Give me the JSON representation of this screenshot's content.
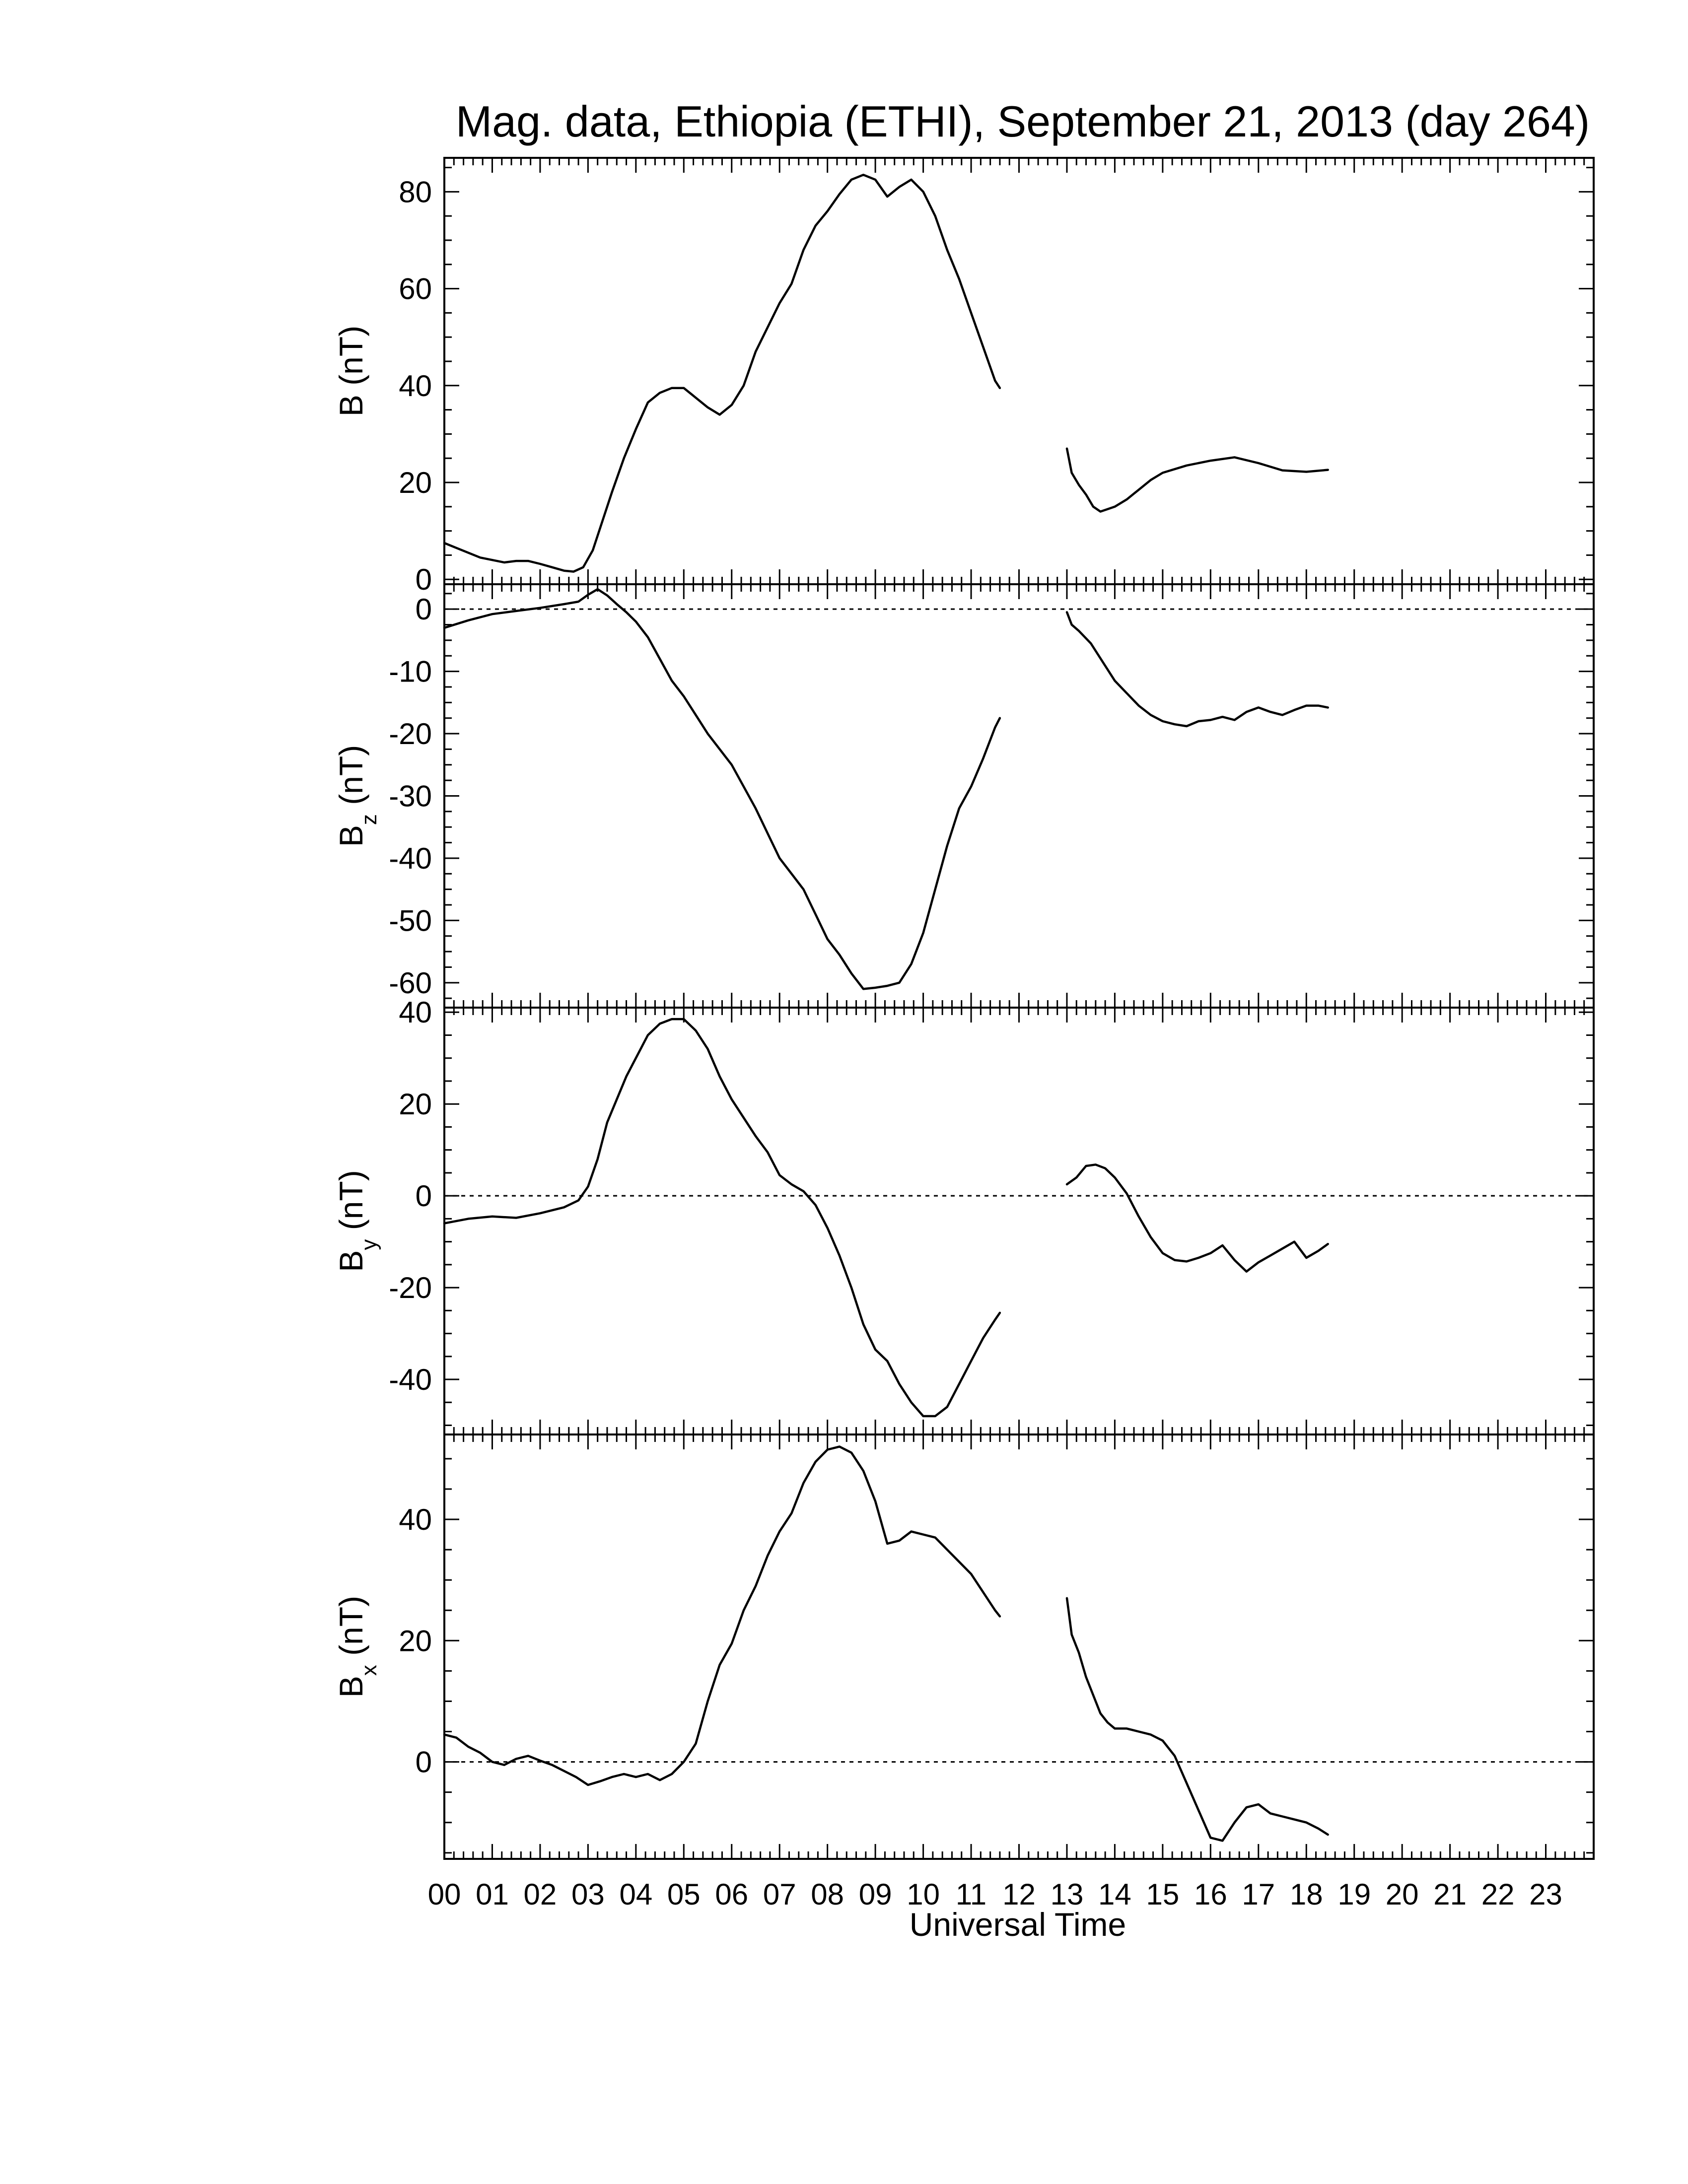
{
  "figure": {
    "title": "Mag. data, Ethiopia (ETHI), September 21, 2013 (day 264)",
    "xlabel": "Universal Time"
  },
  "chart_data": [
    {
      "type": "line",
      "panel": "B",
      "ylabel_base": "B",
      "ylabel_sub": "",
      "ylabel_unit": "(nT)",
      "ylim": [
        -1,
        87
      ],
      "yticks": [
        0,
        20,
        40,
        60,
        80
      ],
      "xlim": [
        0,
        24
      ],
      "zero_line": false,
      "segments": [
        [
          [
            0,
            7.5
          ],
          [
            0.25,
            6.5
          ],
          [
            0.5,
            5.5
          ],
          [
            0.75,
            4.5
          ],
          [
            1.0,
            4
          ],
          [
            1.25,
            3.5
          ],
          [
            1.5,
            3.8
          ],
          [
            1.75,
            3.8
          ],
          [
            2.0,
            3.2
          ],
          [
            2.25,
            2.5
          ],
          [
            2.5,
            1.8
          ],
          [
            2.7,
            1.6
          ],
          [
            2.9,
            2.5
          ],
          [
            3.1,
            6
          ],
          [
            3.3,
            12
          ],
          [
            3.5,
            18
          ],
          [
            3.75,
            25
          ],
          [
            4.0,
            31
          ],
          [
            4.25,
            36.5
          ],
          [
            4.5,
            38.5
          ],
          [
            4.75,
            39.5
          ],
          [
            5.0,
            39.5
          ],
          [
            5.25,
            37.5
          ],
          [
            5.5,
            35.5
          ],
          [
            5.75,
            34
          ],
          [
            6.0,
            36
          ],
          [
            6.25,
            40
          ],
          [
            6.5,
            47
          ],
          [
            6.75,
            52
          ],
          [
            7.0,
            57
          ],
          [
            7.25,
            61
          ],
          [
            7.5,
            68
          ],
          [
            7.75,
            73
          ],
          [
            8.0,
            76
          ],
          [
            8.25,
            79.5
          ],
          [
            8.5,
            82.5
          ],
          [
            8.75,
            83.5
          ],
          [
            9.0,
            82.5
          ],
          [
            9.25,
            79
          ],
          [
            9.5,
            81
          ],
          [
            9.75,
            82.5
          ],
          [
            10.0,
            80
          ],
          [
            10.25,
            75
          ],
          [
            10.5,
            68
          ],
          [
            10.75,
            62
          ],
          [
            11.0,
            55
          ],
          [
            11.25,
            48
          ],
          [
            11.5,
            41
          ],
          [
            11.6,
            39.5
          ]
        ],
        [
          [
            13.0,
            27
          ],
          [
            13.1,
            22
          ],
          [
            13.25,
            19.5
          ],
          [
            13.4,
            17.5
          ],
          [
            13.55,
            15
          ],
          [
            13.7,
            14
          ],
          [
            13.85,
            14.5
          ],
          [
            14.0,
            15
          ],
          [
            14.25,
            16.5
          ],
          [
            14.5,
            18.5
          ],
          [
            14.75,
            20.5
          ],
          [
            15.0,
            22
          ],
          [
            15.5,
            23.5
          ],
          [
            16.0,
            24.5
          ],
          [
            16.5,
            25.2
          ],
          [
            17.0,
            24
          ],
          [
            17.5,
            22.5
          ],
          [
            18.0,
            22.2
          ],
          [
            18.45,
            22.6
          ]
        ]
      ]
    },
    {
      "type": "line",
      "panel": "Bz",
      "ylabel_base": "B",
      "ylabel_sub": "z",
      "ylabel_unit": "(nT)",
      "ylim": [
        -64,
        4
      ],
      "yticks": [
        0,
        -10,
        -20,
        -30,
        -40,
        -50,
        -60
      ],
      "xlim": [
        0,
        24
      ],
      "zero_line": true,
      "segments": [
        [
          [
            0,
            -3
          ],
          [
            0.5,
            -1.8
          ],
          [
            1.0,
            -0.8
          ],
          [
            1.5,
            -0.3
          ],
          [
            2.0,
            0.2
          ],
          [
            2.5,
            0.8
          ],
          [
            2.8,
            1.2
          ],
          [
            3.0,
            2.3
          ],
          [
            3.2,
            3.2
          ],
          [
            3.4,
            2.2
          ],
          [
            3.6,
            0.8
          ],
          [
            3.8,
            -0.5
          ],
          [
            4.0,
            -2
          ],
          [
            4.25,
            -4.5
          ],
          [
            4.5,
            -8
          ],
          [
            4.75,
            -11.5
          ],
          [
            5.0,
            -14
          ],
          [
            5.25,
            -17
          ],
          [
            5.5,
            -20
          ],
          [
            5.75,
            -22.5
          ],
          [
            6.0,
            -25
          ],
          [
            6.25,
            -28.5
          ],
          [
            6.5,
            -32
          ],
          [
            6.75,
            -36
          ],
          [
            7.0,
            -40
          ],
          [
            7.25,
            -42.5
          ],
          [
            7.5,
            -45
          ],
          [
            7.75,
            -49
          ],
          [
            8.0,
            -53
          ],
          [
            8.25,
            -55.5
          ],
          [
            8.5,
            -58.5
          ],
          [
            8.75,
            -61
          ],
          [
            9.0,
            -60.8
          ],
          [
            9.25,
            -60.5
          ],
          [
            9.5,
            -60
          ],
          [
            9.75,
            -57
          ],
          [
            10.0,
            -52
          ],
          [
            10.25,
            -45
          ],
          [
            10.5,
            -38
          ],
          [
            10.75,
            -32
          ],
          [
            11.0,
            -28.5
          ],
          [
            11.25,
            -24
          ],
          [
            11.5,
            -19
          ],
          [
            11.6,
            -17.5
          ]
        ],
        [
          [
            13.0,
            -0.5
          ],
          [
            13.1,
            -2.5
          ],
          [
            13.25,
            -3.5
          ],
          [
            13.5,
            -5.5
          ],
          [
            13.75,
            -8.5
          ],
          [
            14.0,
            -11.5
          ],
          [
            14.25,
            -13.5
          ],
          [
            14.5,
            -15.5
          ],
          [
            14.75,
            -17
          ],
          [
            15.0,
            -18
          ],
          [
            15.25,
            -18.5
          ],
          [
            15.5,
            -18.8
          ],
          [
            15.75,
            -18
          ],
          [
            16.0,
            -17.8
          ],
          [
            16.25,
            -17.3
          ],
          [
            16.5,
            -17.8
          ],
          [
            16.75,
            -16.5
          ],
          [
            17.0,
            -15.8
          ],
          [
            17.25,
            -16.5
          ],
          [
            17.5,
            -17
          ],
          [
            17.75,
            -16.2
          ],
          [
            18.0,
            -15.5
          ],
          [
            18.25,
            -15.5
          ],
          [
            18.45,
            -15.8
          ]
        ]
      ]
    },
    {
      "type": "line",
      "panel": "By",
      "ylabel_base": "B",
      "ylabel_sub": "y",
      "ylabel_unit": "(nT)",
      "ylim": [
        -52,
        41
      ],
      "yticks": [
        40,
        20,
        0,
        -20,
        -40
      ],
      "xlim": [
        0,
        24
      ],
      "zero_line": true,
      "segments": [
        [
          [
            0,
            -6
          ],
          [
            0.5,
            -5
          ],
          [
            1.0,
            -4.5
          ],
          [
            1.5,
            -4.8
          ],
          [
            2.0,
            -3.8
          ],
          [
            2.5,
            -2.5
          ],
          [
            2.8,
            -1
          ],
          [
            3.0,
            2
          ],
          [
            3.2,
            8
          ],
          [
            3.4,
            16
          ],
          [
            3.6,
            21
          ],
          [
            3.8,
            26
          ],
          [
            4.0,
            30
          ],
          [
            4.25,
            35
          ],
          [
            4.5,
            37.5
          ],
          [
            4.75,
            38.5
          ],
          [
            5.0,
            38.5
          ],
          [
            5.25,
            36
          ],
          [
            5.5,
            32
          ],
          [
            5.75,
            26
          ],
          [
            6.0,
            21
          ],
          [
            6.25,
            17
          ],
          [
            6.5,
            13
          ],
          [
            6.75,
            9.5
          ],
          [
            7.0,
            4.5
          ],
          [
            7.25,
            2.5
          ],
          [
            7.5,
            1
          ],
          [
            7.75,
            -2
          ],
          [
            8.0,
            -7
          ],
          [
            8.25,
            -13
          ],
          [
            8.5,
            -20
          ],
          [
            8.75,
            -28
          ],
          [
            9.0,
            -33.5
          ],
          [
            9.25,
            -36
          ],
          [
            9.5,
            -41
          ],
          [
            9.75,
            -45
          ],
          [
            10.0,
            -48
          ],
          [
            10.25,
            -48
          ],
          [
            10.5,
            -46
          ],
          [
            10.75,
            -41
          ],
          [
            11.0,
            -36
          ],
          [
            11.25,
            -31
          ],
          [
            11.5,
            -27
          ],
          [
            11.6,
            -25.5
          ]
        ],
        [
          [
            13.0,
            2.5
          ],
          [
            13.2,
            4
          ],
          [
            13.4,
            6.5
          ],
          [
            13.6,
            6.8
          ],
          [
            13.8,
            6
          ],
          [
            14.0,
            4
          ],
          [
            14.25,
            0.5
          ],
          [
            14.5,
            -4.5
          ],
          [
            14.75,
            -9
          ],
          [
            15.0,
            -12.5
          ],
          [
            15.25,
            -14
          ],
          [
            15.5,
            -14.3
          ],
          [
            15.75,
            -13.5
          ],
          [
            16.0,
            -12.5
          ],
          [
            16.25,
            -10.8
          ],
          [
            16.5,
            -14
          ],
          [
            16.75,
            -16.5
          ],
          [
            17.0,
            -14.5
          ],
          [
            17.25,
            -13
          ],
          [
            17.5,
            -11.5
          ],
          [
            17.75,
            -10
          ],
          [
            18.0,
            -13.5
          ],
          [
            18.25,
            -12
          ],
          [
            18.45,
            -10.5
          ]
        ]
      ]
    },
    {
      "type": "line",
      "panel": "Bx",
      "ylabel_base": "B",
      "ylabel_sub": "x",
      "ylabel_unit": "(nT)",
      "ylim": [
        -16,
        54
      ],
      "yticks": [
        40,
        20,
        0
      ],
      "xlim": [
        0,
        24
      ],
      "zero_line": true,
      "segments": [
        [
          [
            0,
            4.5
          ],
          [
            0.25,
            4
          ],
          [
            0.5,
            2.5
          ],
          [
            0.75,
            1.5
          ],
          [
            1.0,
            0
          ],
          [
            1.25,
            -0.5
          ],
          [
            1.5,
            0.5
          ],
          [
            1.75,
            1
          ],
          [
            2.0,
            0.2
          ],
          [
            2.25,
            -0.5
          ],
          [
            2.5,
            -1.5
          ],
          [
            2.75,
            -2.5
          ],
          [
            3.0,
            -3.8
          ],
          [
            3.25,
            -3.2
          ],
          [
            3.5,
            -2.5
          ],
          [
            3.75,
            -2
          ],
          [
            4.0,
            -2.5
          ],
          [
            4.25,
            -2
          ],
          [
            4.5,
            -3
          ],
          [
            4.75,
            -2
          ],
          [
            5.0,
            0
          ],
          [
            5.25,
            3
          ],
          [
            5.5,
            10
          ],
          [
            5.75,
            16
          ],
          [
            6.0,
            19.5
          ],
          [
            6.25,
            25
          ],
          [
            6.5,
            29
          ],
          [
            6.75,
            34
          ],
          [
            7.0,
            38
          ],
          [
            7.25,
            41
          ],
          [
            7.5,
            46
          ],
          [
            7.75,
            49.5
          ],
          [
            8.0,
            51.5
          ],
          [
            8.25,
            52
          ],
          [
            8.5,
            51
          ],
          [
            8.75,
            48
          ],
          [
            9.0,
            43
          ],
          [
            9.25,
            36
          ],
          [
            9.5,
            36.5
          ],
          [
            9.75,
            38
          ],
          [
            10.0,
            37.5
          ],
          [
            10.25,
            37
          ],
          [
            10.5,
            35
          ],
          [
            10.75,
            33
          ],
          [
            11.0,
            31
          ],
          [
            11.25,
            28
          ],
          [
            11.5,
            25
          ],
          [
            11.6,
            24
          ]
        ],
        [
          [
            13.0,
            27
          ],
          [
            13.1,
            21
          ],
          [
            13.25,
            18
          ],
          [
            13.4,
            14
          ],
          [
            13.55,
            11
          ],
          [
            13.7,
            8
          ],
          [
            13.85,
            6.5
          ],
          [
            14.0,
            5.5
          ],
          [
            14.25,
            5.5
          ],
          [
            14.5,
            5
          ],
          [
            14.75,
            4.5
          ],
          [
            15.0,
            3.5
          ],
          [
            15.25,
            1
          ],
          [
            15.5,
            -3.5
          ],
          [
            15.75,
            -8
          ],
          [
            16.0,
            -12.5
          ],
          [
            16.25,
            -13
          ],
          [
            16.5,
            -10
          ],
          [
            16.75,
            -7.5
          ],
          [
            17.0,
            -7
          ],
          [
            17.25,
            -8.5
          ],
          [
            17.5,
            -9
          ],
          [
            17.75,
            -9.5
          ],
          [
            18.0,
            -10
          ],
          [
            18.25,
            -11
          ],
          [
            18.45,
            -12
          ]
        ]
      ]
    }
  ],
  "xticks": [
    "00",
    "01",
    "02",
    "03",
    "04",
    "05",
    "06",
    "07",
    "08",
    "09",
    "10",
    "11",
    "12",
    "13",
    "14",
    "15",
    "16",
    "17",
    "18",
    "19",
    "20",
    "21",
    "22",
    "23"
  ]
}
